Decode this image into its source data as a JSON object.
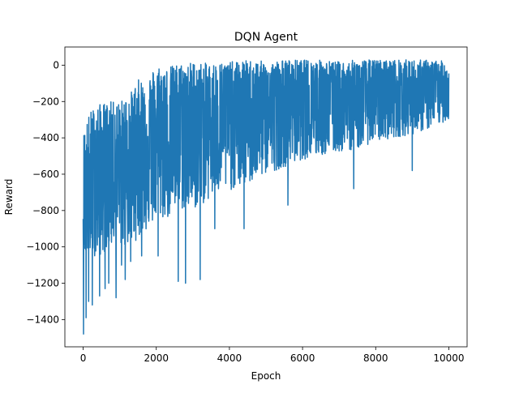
{
  "chart_data": {
    "type": "line",
    "title": "DQN Agent",
    "xlabel": "Epoch",
    "ylabel": "Reward",
    "xlim": [
      -500,
      10500
    ],
    "ylim": [
      -1550,
      100
    ],
    "xticks": [
      0,
      2000,
      4000,
      6000,
      8000,
      10000
    ],
    "yticks": [
      -1400,
      -1200,
      -1000,
      -800,
      -600,
      -400,
      -200,
      0
    ],
    "series": [
      {
        "color": "#1f77b4",
        "epochs": 10000,
        "envelope": {
          "x": [
            0,
            50,
            100,
            200,
            300,
            500,
            700,
            1000,
            1300,
            1500,
            1800,
            2000,
            2300,
            2600,
            3000,
            3400,
            3800,
            4200,
            4600,
            5000,
            5500,
            6000,
            6500,
            7000,
            7500,
            8000,
            8500,
            9000,
            9500,
            10000
          ],
          "upper": [
            -380,
            -330,
            -300,
            -250,
            -230,
            -210,
            -200,
            -200,
            -150,
            -80,
            -60,
            10,
            -10,
            10,
            20,
            10,
            20,
            20,
            30,
            20,
            30,
            30,
            30,
            20,
            30,
            30,
            30,
            30,
            30,
            20
          ],
          "median": [
            -750,
            -720,
            -700,
            -680,
            -650,
            -600,
            -570,
            -540,
            -500,
            -470,
            -430,
            -400,
            -380,
            -350,
            -320,
            -300,
            -280,
            -260,
            -250,
            -240,
            -220,
            -210,
            -200,
            -190,
            -180,
            -170,
            -160,
            -160,
            -150,
            -140
          ],
          "lower": [
            -1000,
            -1050,
            -1050,
            -1050,
            -1050,
            -1050,
            -1000,
            -1000,
            -1000,
            -950,
            -900,
            -850,
            -850,
            -800,
            -800,
            -750,
            -700,
            -680,
            -650,
            -600,
            -560,
            -520,
            -500,
            -480,
            -460,
            -420,
            -400,
            -380,
            -350,
            -300
          ]
        },
        "spikes": [
          {
            "x": 10,
            "y": -1480
          },
          {
            "x": 80,
            "y": -1390
          },
          {
            "x": 150,
            "y": -1300
          },
          {
            "x": 250,
            "y": -1320
          },
          {
            "x": 450,
            "y": -1270
          },
          {
            "x": 600,
            "y": -1230
          },
          {
            "x": 700,
            "y": -1200
          },
          {
            "x": 900,
            "y": -1280
          },
          {
            "x": 1050,
            "y": -1100
          },
          {
            "x": 1150,
            "y": -1180
          },
          {
            "x": 1300,
            "y": -1080
          },
          {
            "x": 1600,
            "y": -1050
          },
          {
            "x": 2050,
            "y": -1050
          },
          {
            "x": 2600,
            "y": -1190
          },
          {
            "x": 2800,
            "y": -1200
          },
          {
            "x": 3200,
            "y": -1180
          },
          {
            "x": 3600,
            "y": -900
          },
          {
            "x": 4400,
            "y": -900
          },
          {
            "x": 5600,
            "y": -770
          },
          {
            "x": 7400,
            "y": -680
          },
          {
            "x": 9000,
            "y": -580
          }
        ]
      }
    ]
  }
}
